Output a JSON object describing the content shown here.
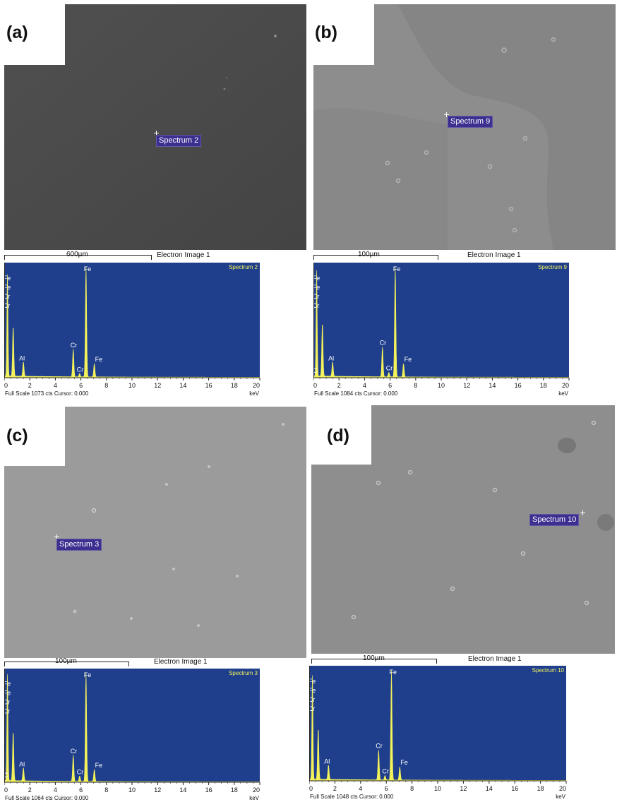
{
  "colors": {
    "plot_background": "#1f3f8c",
    "spectrum_fill": "#f4f25a",
    "peak_labels": "#ffffff",
    "title_text": "#f4f25a",
    "spectrum_label_box": "#3b2f8f"
  },
  "panels": [
    {
      "label": "(a)",
      "spectrum_label": "Spectrum 2",
      "scale_bar": "600µm",
      "image_label": "Electron Image 1",
      "footer": "Full Scale 1073 cts Cursor: 0.000",
      "sem_tone": "#4a4a4a"
    },
    {
      "label": "(b)",
      "spectrum_label": "Spectrum 9",
      "scale_bar": "100µm",
      "image_label": "Electron Image 1",
      "footer": "Full Scale 1084 cts Cursor: 0.000",
      "sem_tone": "#8a8a8a"
    },
    {
      "label": "(c)",
      "spectrum_label": "Spectrum 3",
      "scale_bar": "100µm",
      "image_label": "Electron Image 1",
      "footer": "Full Scale 1064 cts Cursor: 0.000",
      "sem_tone": "#9a9a9a"
    },
    {
      "label": "(d)",
      "spectrum_label": "Spectrum 10",
      "scale_bar": "100µm",
      "image_label": "Electron Image 1",
      "footer": "Full Scale 1048 cts Cursor: 0.000",
      "sem_tone": "#8c8c8c"
    }
  ],
  "chart_data": [
    {
      "type": "line",
      "title": "Spectrum 2",
      "xlabel": "keV",
      "xlim": [
        0,
        20
      ],
      "ylim": [
        0,
        1073
      ],
      "x_ticks": [
        "0",
        "2",
        "4",
        "6",
        "8",
        "10",
        "12",
        "14",
        "16",
        "18",
        "20"
      ],
      "peaks": [
        {
          "x": 0.25,
          "y": 0.93,
          "labels": []
        },
        {
          "x": 0.7,
          "y": 0.45,
          "labels": [
            "Fe",
            "Fe",
            "Cr",
            "Cr"
          ]
        },
        {
          "x": 1.5,
          "y": 0.13,
          "labels": [
            "Al"
          ]
        },
        {
          "x": 5.4,
          "y": 0.25,
          "labels": [
            "Cr"
          ]
        },
        {
          "x": 5.9,
          "y": 0.03,
          "labels": [
            "Cr"
          ]
        },
        {
          "x": 6.4,
          "y": 1.0,
          "labels": [
            "Fe"
          ]
        },
        {
          "x": 7.05,
          "y": 0.12,
          "labels": [
            "Fe"
          ]
        }
      ]
    },
    {
      "type": "line",
      "title": "Spectrum 9",
      "xlabel": "keV",
      "xlim": [
        0,
        20
      ],
      "ylim": [
        0,
        1084
      ],
      "x_ticks": [
        "0",
        "2",
        "4",
        "6",
        "8",
        "10",
        "12",
        "14",
        "16",
        "18",
        "20"
      ],
      "peaks": [
        {
          "x": 0.25,
          "y": 0.95,
          "labels": []
        },
        {
          "x": 0.28,
          "y": 0.02,
          "labels": [
            "C"
          ]
        },
        {
          "x": 0.7,
          "y": 0.48,
          "labels": [
            "Fe",
            "Fe",
            "Cr",
            "Cr"
          ]
        },
        {
          "x": 1.5,
          "y": 0.13,
          "labels": [
            "Al"
          ]
        },
        {
          "x": 5.4,
          "y": 0.27,
          "labels": [
            "Cr"
          ]
        },
        {
          "x": 5.9,
          "y": 0.04,
          "labels": [
            "Cr"
          ]
        },
        {
          "x": 6.4,
          "y": 1.0,
          "labels": [
            "Fe"
          ]
        },
        {
          "x": 7.05,
          "y": 0.12,
          "labels": [
            "Fe"
          ]
        }
      ]
    },
    {
      "type": "line",
      "title": "Spectrum 3",
      "xlabel": "keV",
      "xlim": [
        0,
        20
      ],
      "ylim": [
        0,
        1064
      ],
      "x_ticks": [
        "0",
        "2",
        "4",
        "6",
        "8",
        "10",
        "12",
        "14",
        "16",
        "18",
        "20"
      ],
      "peaks": [
        {
          "x": 0.25,
          "y": 0.97,
          "labels": []
        },
        {
          "x": 0.28,
          "y": 0.02,
          "labels": [
            "C"
          ]
        },
        {
          "x": 0.7,
          "y": 0.45,
          "labels": [
            "Fe",
            "Fe",
            "Cr",
            "Cr"
          ]
        },
        {
          "x": 1.5,
          "y": 0.12,
          "labels": [
            "Al"
          ]
        },
        {
          "x": 5.4,
          "y": 0.24,
          "labels": [
            "Cr"
          ]
        },
        {
          "x": 5.9,
          "y": 0.05,
          "labels": [
            "Cr"
          ]
        },
        {
          "x": 6.4,
          "y": 1.0,
          "labels": [
            "Fe"
          ]
        },
        {
          "x": 7.05,
          "y": 0.11,
          "labels": [
            "Fe"
          ]
        }
      ]
    },
    {
      "type": "line",
      "title": "Spectrum 10",
      "xlabel": "keV",
      "xlim": [
        0,
        20
      ],
      "ylim": [
        0,
        1048
      ],
      "x_ticks": [
        "0",
        "2",
        "4",
        "6",
        "8",
        "10",
        "12",
        "14",
        "16",
        "18",
        "20"
      ],
      "peaks": [
        {
          "x": 0.25,
          "y": 0.95,
          "labels": []
        },
        {
          "x": 0.7,
          "y": 0.46,
          "labels": [
            "Fe",
            "Fe",
            "Cr",
            "Cr"
          ]
        },
        {
          "x": 1.5,
          "y": 0.13,
          "labels": [
            "Al"
          ]
        },
        {
          "x": 5.4,
          "y": 0.27,
          "labels": [
            "Cr"
          ]
        },
        {
          "x": 5.9,
          "y": 0.04,
          "labels": [
            "Cr"
          ]
        },
        {
          "x": 6.4,
          "y": 1.0,
          "labels": [
            "Fe"
          ]
        },
        {
          "x": 7.05,
          "y": 0.12,
          "labels": [
            "Fe"
          ]
        }
      ]
    }
  ]
}
